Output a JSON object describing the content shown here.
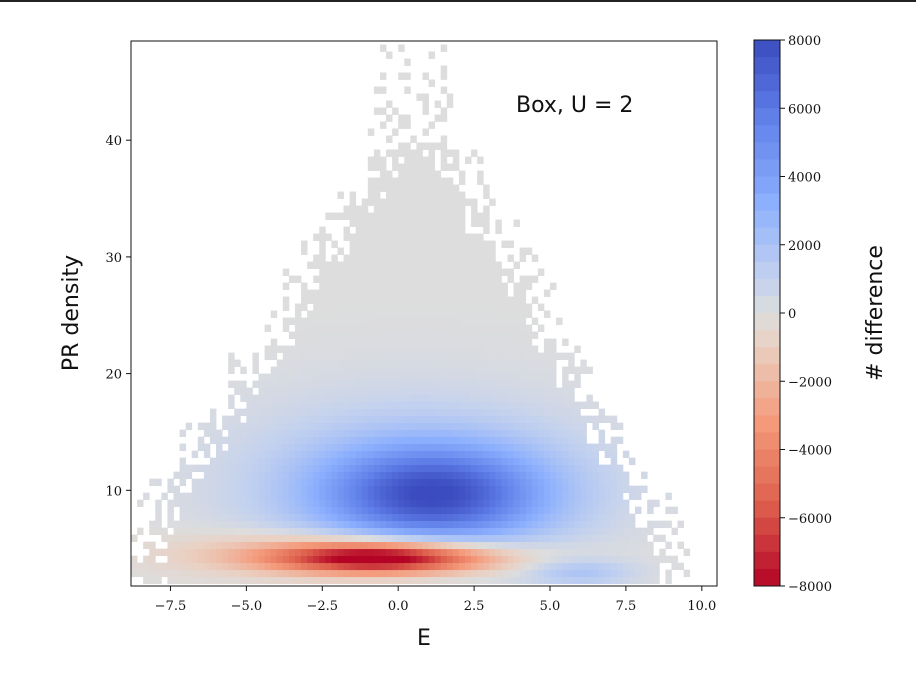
{
  "chart_data": {
    "type": "heatmap",
    "title": "",
    "annotation": "Box, U = 2",
    "xlabel": "E",
    "ylabel": "PR density",
    "xlim": [
      -8.8,
      10.5
    ],
    "ylim": [
      1.8,
      48.5
    ],
    "x_ticks": [
      -7.5,
      -5.0,
      -2.5,
      0.0,
      2.5,
      5.0,
      7.5,
      10.0
    ],
    "x_tick_labels": [
      "−7.5",
      "−5.0",
      "−2.5",
      "0.0",
      "2.5",
      "5.0",
      "7.5",
      "10.0"
    ],
    "y_ticks": [
      10,
      20,
      30,
      40
    ],
    "y_tick_labels": [
      "10",
      "20",
      "30",
      "40"
    ],
    "colorbar": {
      "label": "# difference",
      "colormap": "coolwarm",
      "range": [
        -8000,
        8000
      ],
      "ticks": [
        8000,
        6000,
        4000,
        2000,
        0,
        -2000,
        -4000,
        -6000,
        -8000
      ],
      "tick_labels": [
        "8000",
        "6000",
        "4000",
        "2000",
        "0",
        "−2000",
        "−4000",
        "−6000",
        "−8000"
      ]
    },
    "colors": {
      "neutral": "#dcdcdc",
      "positive_max": "#3b4cc0",
      "negative_max": "#b40426"
    },
    "features": [
      {
        "name": "negative-core",
        "center_E": -0.5,
        "center_PR": 4.2,
        "width_E": 2.4,
        "width_PR": 0.9,
        "peak_value": -7800
      },
      {
        "name": "negative-wide",
        "center_E": -1.5,
        "center_PR": 4.6,
        "width_E": 3.6,
        "width_PR": 1.3,
        "peak_value": -3000
      },
      {
        "name": "positive-main",
        "center_E": 1.2,
        "center_PR": 9.6,
        "width_E": 2.6,
        "width_PR": 3.0,
        "peak_value": 6500
      },
      {
        "name": "positive-wide",
        "center_E": 0.5,
        "center_PR": 11.0,
        "width_E": 4.0,
        "width_PR": 5.0,
        "peak_value": 1800
      },
      {
        "name": "positive-tail",
        "center_E": 6.0,
        "center_PR": 3.0,
        "width_E": 1.2,
        "width_PR": 0.8,
        "peak_value": 1800
      }
    ]
  }
}
